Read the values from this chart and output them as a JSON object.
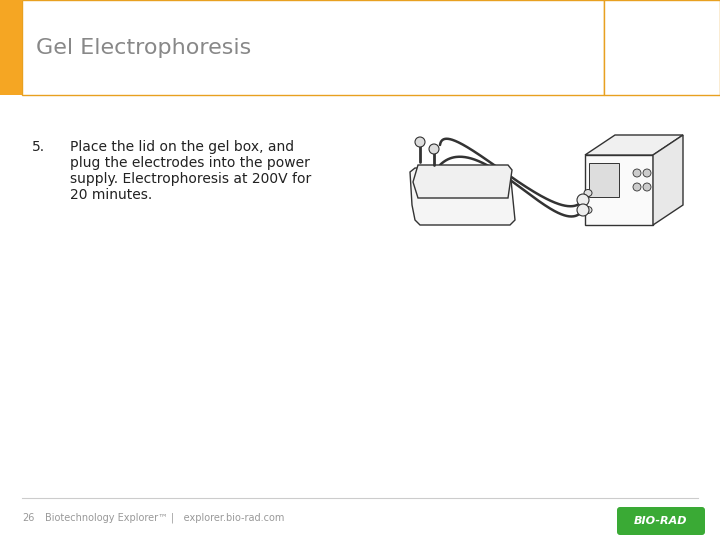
{
  "title": "Gel Electrophoresis",
  "title_fontsize": 16,
  "title_color": "#888888",
  "header_bar_color": "#F5A623",
  "header_border_color": "#E8A020",
  "bg_color": "#FFFFFF",
  "step_number": "5.",
  "step_text_line1": "Place the lid on the gel box, and",
  "step_text_line2": "plug the electrodes into the power",
  "step_text_line3": "supply. Electrophoresis at 200V for",
  "step_text_line4": "20 minutes.",
  "step_fontsize": 10,
  "step_color": "#222222",
  "footer_text": "Biotechnology Explorer™ |   explorer.bio-rad.com",
  "footer_page": "26",
  "footer_fontsize": 7,
  "footer_color": "#999999",
  "biorad_bg": "#3AAA35",
  "biorad_text": "BIO-RAD",
  "biorad_text_color": "#FFFFFF",
  "separator_color": "#CCCCCC",
  "sketch_color": "#333333",
  "sketch_lw": 1.0
}
